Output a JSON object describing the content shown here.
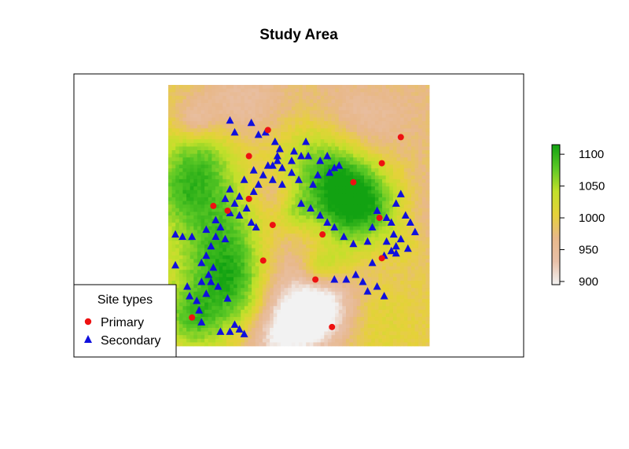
{
  "title": "Study Area",
  "legend": {
    "title": "Site types",
    "entries": [
      {
        "label": "Primary",
        "color": "#ee1111",
        "shape": "circle"
      },
      {
        "label": "Secondary",
        "color": "#1010dd",
        "shape": "triangle"
      }
    ]
  },
  "colorbar": {
    "ticks": [
      900,
      950,
      1000,
      1050,
      1100
    ],
    "min": 895,
    "max": 1115,
    "colors": [
      "#f2f2f2",
      "#e8c0a8",
      "#e8b88a",
      "#e6d13a",
      "#c2e02a",
      "#5bc825",
      "#12a212"
    ]
  },
  "raster": {
    "cols": 72,
    "rows": 72
  },
  "sites": {
    "primary": [
      [
        42,
        91
      ],
      [
        90,
        77
      ],
      [
        34,
        80
      ],
      [
        34,
        62
      ],
      [
        25,
        57
      ],
      [
        44,
        51
      ],
      [
        89,
        54
      ],
      [
        40,
        36
      ],
      [
        19,
        59
      ],
      [
        65,
        47
      ],
      [
        62,
        28
      ],
      [
        10,
        12
      ],
      [
        90,
        37
      ],
      [
        69,
        8
      ],
      [
        78,
        69
      ],
      [
        98,
        88
      ]
    ],
    "secondary": [
      [
        26,
        95
      ],
      [
        28,
        90
      ],
      [
        35,
        94
      ],
      [
        38,
        89
      ],
      [
        41,
        90
      ],
      [
        45,
        86
      ],
      [
        47,
        83
      ],
      [
        46,
        80
      ],
      [
        52,
        78
      ],
      [
        53,
        82
      ],
      [
        56,
        80
      ],
      [
        58,
        86
      ],
      [
        59,
        80
      ],
      [
        64,
        78
      ],
      [
        67,
        80
      ],
      [
        70,
        75
      ],
      [
        68,
        73
      ],
      [
        72,
        76
      ],
      [
        63,
        72
      ],
      [
        61,
        68
      ],
      [
        55,
        70
      ],
      [
        52,
        73
      ],
      [
        48,
        75
      ],
      [
        46,
        78
      ],
      [
        44,
        76
      ],
      [
        40,
        72
      ],
      [
        38,
        68
      ],
      [
        36,
        65
      ],
      [
        32,
        70
      ],
      [
        30,
        63
      ],
      [
        28,
        60
      ],
      [
        26,
        56
      ],
      [
        30,
        55
      ],
      [
        33,
        58
      ],
      [
        35,
        52
      ],
      [
        37,
        50
      ],
      [
        22,
        50
      ],
      [
        20,
        46
      ],
      [
        24,
        45
      ],
      [
        18,
        42
      ],
      [
        16,
        38
      ],
      [
        14,
        35
      ],
      [
        17,
        30
      ],
      [
        18,
        27
      ],
      [
        21,
        25
      ],
      [
        25,
        20
      ],
      [
        16,
        22
      ],
      [
        14,
        27
      ],
      [
        19,
        33
      ],
      [
        8,
        25
      ],
      [
        9,
        21
      ],
      [
        12,
        19
      ],
      [
        13,
        15
      ],
      [
        14,
        10
      ],
      [
        22,
        6
      ],
      [
        28,
        9
      ],
      [
        30,
        7
      ],
      [
        32,
        5
      ],
      [
        26,
        6
      ],
      [
        3,
        34
      ],
      [
        3,
        47
      ],
      [
        6,
        46
      ],
      [
        10,
        46
      ],
      [
        16,
        49
      ],
      [
        20,
        53
      ],
      [
        24,
        62
      ],
      [
        26,
        66
      ],
      [
        36,
        74
      ],
      [
        42,
        76
      ],
      [
        44,
        70
      ],
      [
        48,
        68
      ],
      [
        56,
        60
      ],
      [
        60,
        58
      ],
      [
        64,
        55
      ],
      [
        67,
        52
      ],
      [
        70,
        50
      ],
      [
        74,
        46
      ],
      [
        78,
        43
      ],
      [
        84,
        44
      ],
      [
        86,
        50
      ],
      [
        88,
        57
      ],
      [
        92,
        54
      ],
      [
        94,
        52
      ],
      [
        96,
        60
      ],
      [
        98,
        64
      ],
      [
        100,
        55
      ],
      [
        102,
        52
      ],
      [
        104,
        48
      ],
      [
        101,
        41
      ],
      [
        96,
        39
      ],
      [
        92,
        44
      ],
      [
        95,
        47
      ],
      [
        70,
        28
      ],
      [
        75,
        28
      ],
      [
        79,
        30
      ],
      [
        82,
        27
      ],
      [
        84,
        23
      ],
      [
        88,
        25
      ],
      [
        91,
        21
      ],
      [
        86,
        35
      ],
      [
        91,
        38
      ],
      [
        94,
        40
      ],
      [
        96,
        42
      ],
      [
        98,
        45
      ]
    ]
  }
}
